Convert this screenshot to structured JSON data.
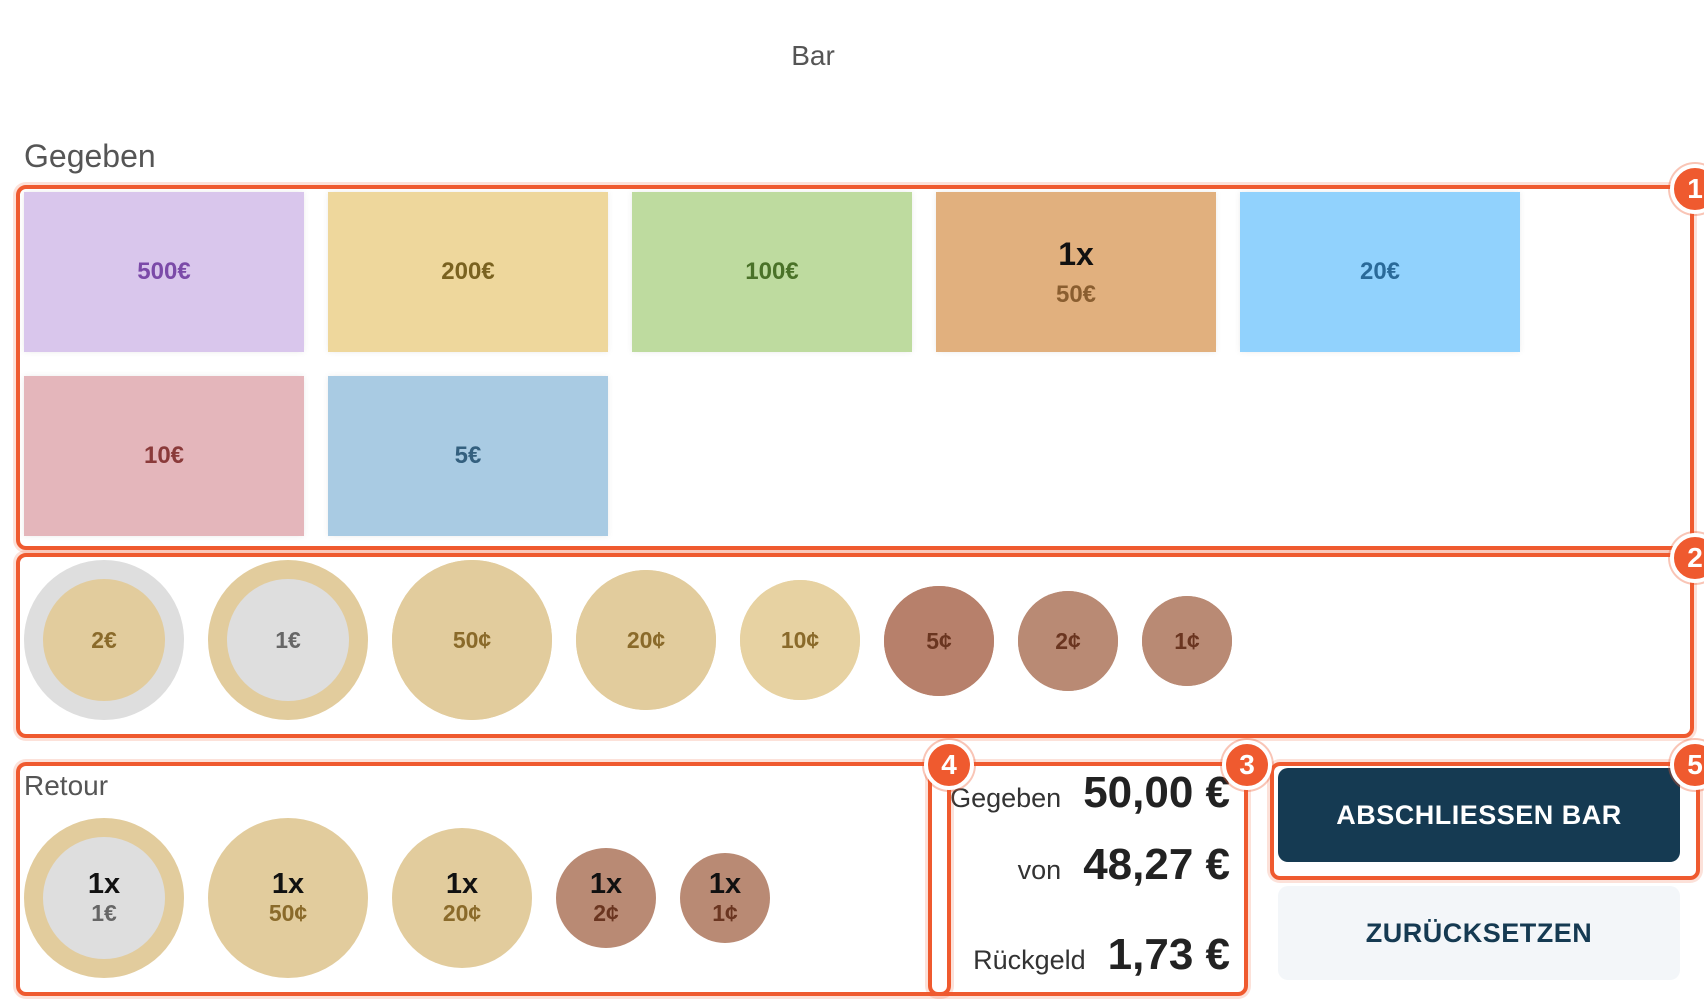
{
  "header": {
    "title": "Bar"
  },
  "given_section": {
    "label": "Gegeben"
  },
  "notes": [
    {
      "label": "500€",
      "count": "",
      "bg": "#d9c6ec",
      "fg": "#7b4aa8"
    },
    {
      "label": "200€",
      "count": "",
      "bg": "#eed79c",
      "fg": "#7a6220"
    },
    {
      "label": "100€",
      "count": "",
      "bg": "#bedb9f",
      "fg": "#4a7228"
    },
    {
      "label": "50€",
      "count": "1x",
      "bg": "#e1b07e",
      "fg": "#8a5e30"
    },
    {
      "label": "20€",
      "count": "",
      "bg": "#91d2fd",
      "fg": "#2a6a99"
    },
    {
      "label": "10€",
      "count": "",
      "bg": "#e4b6bb",
      "fg": "#8a3a3a"
    },
    {
      "label": "5€",
      "count": "",
      "bg": "#a9cbe3",
      "fg": "#34607f"
    }
  ],
  "coins": [
    {
      "label": "2€",
      "outer": "#dedede",
      "inner": "#e2cc9d",
      "fg": "#8a6a2a"
    },
    {
      "label": "1€",
      "outer": "#e2cc9d",
      "inner": "#dedede",
      "fg": "#666666"
    },
    {
      "label": "50¢",
      "outer": "#e2cc9d",
      "inner": "#e2cc9d",
      "fg": "#8a6a2a"
    },
    {
      "label": "20¢",
      "outer": "#e2cc9d",
      "inner": "#e2cc9d",
      "fg": "#8a6a2a"
    },
    {
      "label": "10¢",
      "outer": "#e7d2a2",
      "inner": "#e7d2a2",
      "fg": "#8a6a2a"
    },
    {
      "label": "5¢",
      "outer": "#b7806b",
      "inner": "#b7806b",
      "fg": "#6a3520"
    },
    {
      "label": "2¢",
      "outer": "#b98a74",
      "inner": "#b98a74",
      "fg": "#6a3520"
    },
    {
      "label": "1¢",
      "outer": "#b98a74",
      "inner": "#b98a74",
      "fg": "#6a3520"
    }
  ],
  "return_section": {
    "label": "Retour",
    "coins": [
      {
        "count": "1x",
        "label": "1€"
      },
      {
        "count": "1x",
        "label": "50¢"
      },
      {
        "count": "1x",
        "label": "20¢"
      },
      {
        "count": "1x",
        "label": "2¢"
      },
      {
        "count": "1x",
        "label": "1¢"
      }
    ]
  },
  "summary": {
    "given_label": "Gegeben",
    "given_value": "50,00 €",
    "of_label": "von",
    "of_value": "48,27 €",
    "change_label": "Rückgeld",
    "change_value": "1,73 €"
  },
  "actions": {
    "finish_label": "ABSCHLIESSEN BAR",
    "reset_label": "ZURÜCKSETZEN"
  },
  "annotations": {
    "b1": "1",
    "b2": "2",
    "b3": "3",
    "b4": "4",
    "b5": "5"
  },
  "colors": {
    "accent": "#ef5a2f",
    "primary_button": "#153a52"
  }
}
